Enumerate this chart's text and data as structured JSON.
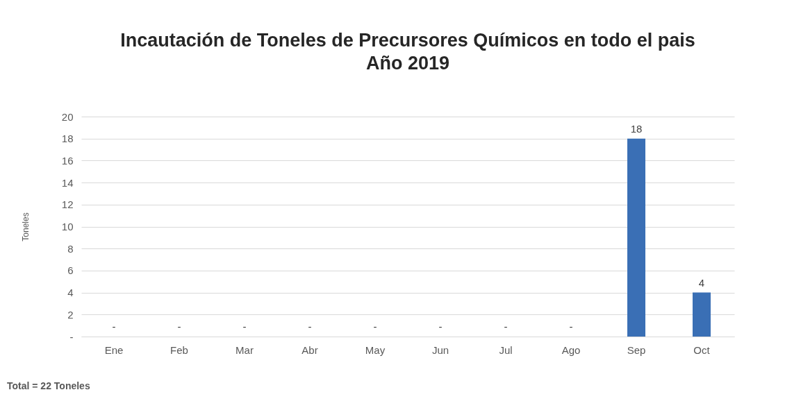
{
  "chart_data": {
    "type": "bar",
    "title": "Incautación de Toneles de Precursores Químicos en todo el pais",
    "subtitle": "Año 2019",
    "ylabel": "Toneles",
    "categories": [
      "Ene",
      "Feb",
      "Mar",
      "Abr",
      "May",
      "Jun",
      "Jul",
      "Ago",
      "Sep",
      "Oct"
    ],
    "values": [
      0,
      0,
      0,
      0,
      0,
      0,
      0,
      0,
      18,
      4
    ],
    "value_labels": [
      "-",
      "-",
      "-",
      "-",
      "-",
      "-",
      "-",
      "-",
      "18",
      "4"
    ],
    "color": "#3a6fb5",
    "ylim": [
      0,
      20
    ],
    "yticks": [
      {
        "value": 0,
        "label": "-"
      },
      2,
      4,
      6,
      8,
      10,
      12,
      14,
      16,
      18,
      20
    ],
    "grid": "y",
    "annotations": [
      "Total = 22 Toneles"
    ]
  }
}
